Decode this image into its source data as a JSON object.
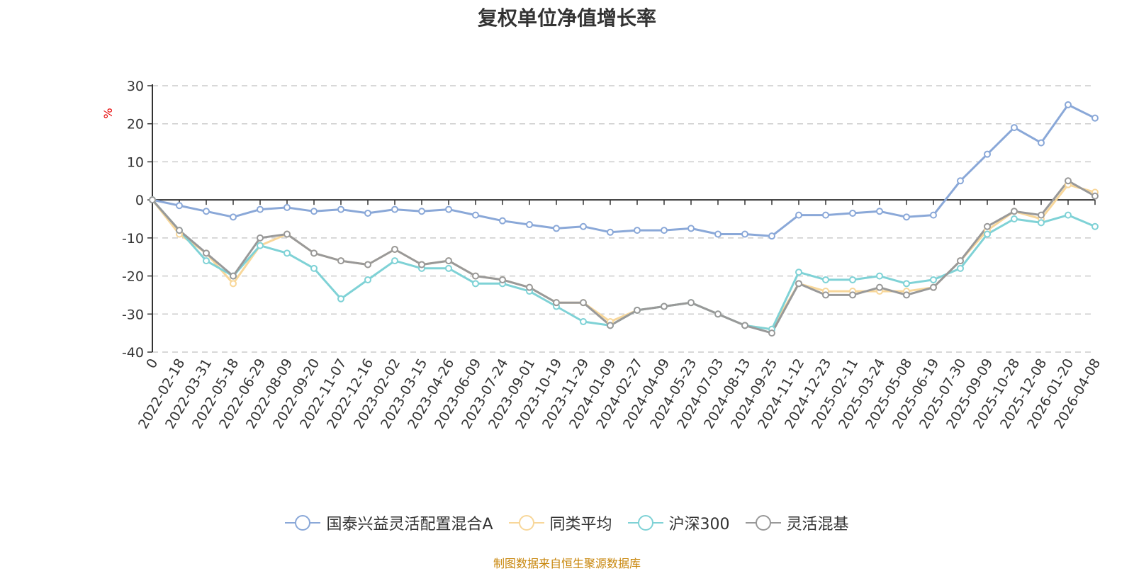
{
  "title": "复权单位净值增长率",
  "footer": "制图数据来自恒生聚源数据库",
  "chart_data": {
    "type": "line",
    "title": "复权单位净值增长率",
    "ylabel": "%",
    "ylim": [
      -40,
      30
    ],
    "yticks": [
      -40,
      -30,
      -20,
      -10,
      0,
      10,
      20,
      30
    ],
    "grid": "horizontal dashed",
    "legend_position": "bottom",
    "x_tick_labels": [
      "0",
      "2022-02-18",
      "2022-03-31",
      "2022-05-18",
      "2022-06-29",
      "2022-08-09",
      "2022-09-20",
      "2022-11-07",
      "2022-12-16",
      "2023-02-02",
      "2023-03-15",
      "2023-04-26",
      "2023-06-09",
      "2023-07-24",
      "2023-09-01",
      "2023-10-19",
      "2023-11-29",
      "2024-01-09",
      "2024-02-27",
      "2024-04-09",
      "2024-05-23",
      "2024-07-03",
      "2024-08-13",
      "2024-09-25",
      "2024-11-12",
      "2024-12-23",
      "2025-02-11",
      "2025-03-24",
      "2025-05-08",
      "2025-06-19",
      "2025-07-30",
      "2025-09-09",
      "2025-10-28",
      "2025-12-08",
      "2026-01-20",
      "2026-04-08"
    ],
    "series": [
      {
        "name": "国泰兴益灵活配置混合A",
        "color": "#8aa8d8",
        "values": [
          0,
          -1.5,
          -3,
          -4.5,
          -2.5,
          -2,
          -3,
          -2.5,
          -3.5,
          -2.5,
          -3,
          -2.5,
          -4,
          -5.5,
          -6.5,
          -7.5,
          -7,
          -8.5,
          -8,
          -8,
          -7.5,
          -9,
          -9,
          -9.5,
          -4,
          -4,
          -3.5,
          -3,
          -4.5,
          -4,
          5,
          12,
          19,
          15,
          25,
          21.5
        ]
      },
      {
        "name": "同类平均",
        "color": "#f8d79a",
        "values": [
          0,
          -9,
          -14,
          -22,
          -12,
          -9,
          -14,
          -16,
          -17,
          -13,
          -17,
          -16,
          -20,
          -21,
          -23,
          -27,
          -27,
          -32,
          -29,
          -28,
          -27,
          -30,
          -33,
          -34,
          -22,
          -24,
          -24,
          -24,
          -24,
          -23,
          -16,
          -8,
          -3,
          -5,
          4,
          2
        ]
      },
      {
        "name": "沪深300",
        "color": "#7fd2d6",
        "values": [
          0,
          -8,
          -16,
          -20,
          -12,
          -14,
          -18,
          -26,
          -21,
          -16,
          -18,
          -18,
          -22,
          -22,
          -24,
          -28,
          -32,
          -33,
          -29,
          -28,
          -27,
          -30,
          -33,
          -34,
          -19,
          -21,
          -21,
          -20,
          -22,
          -21,
          -18,
          -9,
          -5,
          -6,
          -4,
          -7
        ]
      },
      {
        "name": "灵活混基",
        "color": "#999999",
        "values": [
          0,
          -8,
          -14,
          -20,
          -10,
          -9,
          -14,
          -16,
          -17,
          -13,
          -17,
          -16,
          -20,
          -21,
          -23,
          -27,
          -27,
          -33,
          -29,
          -28,
          -27,
          -30,
          -33,
          -35,
          -22,
          -25,
          -25,
          -23,
          -25,
          -23,
          -16,
          -7,
          -3,
          -4,
          5,
          1
        ]
      }
    ]
  }
}
